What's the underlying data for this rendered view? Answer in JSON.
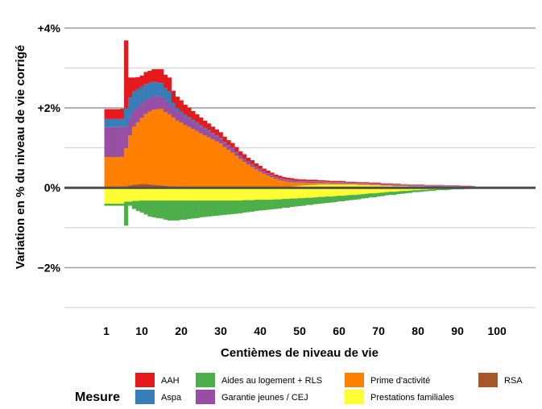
{
  "chart_data": {
    "type": "bar",
    "stacked": true,
    "xlabel": "Centièmes de niveau de vie",
    "ylabel": "Variation en % du niveau de vie corrigé",
    "ylim": [
      -3.0,
      4.5
    ],
    "y_ticks": [
      {
        "value": -2,
        "label": "−2%"
      },
      {
        "value": 0,
        "label": "0%"
      },
      {
        "value": 2,
        "label": "+2%"
      },
      {
        "value": 4,
        "label": "+4%"
      }
    ],
    "x_ticks": [
      {
        "value": 1,
        "label": "1"
      },
      {
        "value": 10,
        "label": "10"
      },
      {
        "value": 20,
        "label": "20"
      },
      {
        "value": 30,
        "label": "30"
      },
      {
        "value": 40,
        "label": "40"
      },
      {
        "value": 50,
        "label": "50"
      },
      {
        "value": 60,
        "label": "60"
      },
      {
        "value": 70,
        "label": "70"
      },
      {
        "value": 80,
        "label": "80"
      },
      {
        "value": 90,
        "label": "90"
      },
      {
        "value": 100,
        "label": "100"
      }
    ],
    "grid": true,
    "legend": {
      "title": "Mesure",
      "position": "bottom",
      "entries": [
        {
          "name": "AAH",
          "color": "#e41a1c"
        },
        {
          "name": "Aspa",
          "color": "#377eb8"
        },
        {
          "name": "Aides au logement + RLS",
          "color": "#4daf4a"
        },
        {
          "name": "Garantie jeunes / CEJ",
          "color": "#984ea3"
        },
        {
          "name": "Prime d'activité",
          "color": "#ff7f00"
        },
        {
          "name": "Prestations familiales",
          "color": "#ffff33"
        },
        {
          "name": "RSA",
          "color": "#a65628"
        }
      ]
    },
    "x": [
      1,
      2,
      3,
      4,
      5,
      6,
      7,
      8,
      9,
      10,
      11,
      12,
      13,
      14,
      15,
      16,
      17,
      18,
      19,
      20,
      21,
      22,
      23,
      24,
      25,
      26,
      27,
      28,
      29,
      30,
      31,
      32,
      33,
      34,
      35,
      36,
      37,
      38,
      39,
      40,
      41,
      42,
      43,
      44,
      45,
      46,
      47,
      48,
      49,
      50,
      51,
      52,
      53,
      54,
      55,
      56,
      57,
      58,
      59,
      60,
      61,
      62,
      63,
      64,
      65,
      66,
      67,
      68,
      69,
      70,
      71,
      72,
      73,
      74,
      75,
      76,
      77,
      78,
      79,
      80,
      81,
      82,
      83,
      84,
      85,
      86,
      87,
      88,
      89,
      90,
      91,
      92,
      93,
      94,
      95,
      96,
      97,
      98,
      99,
      100
    ],
    "positive_series": [
      {
        "name": "RSA",
        "color": "#a65628",
        "values": [
          0.02,
          0.02,
          0.02,
          0.02,
          0.03,
          0.04,
          0.06,
          0.08,
          0.09,
          0.1,
          0.1,
          0.09,
          0.08,
          0.07,
          0.06,
          0.05,
          0.04,
          0.04,
          0.03,
          0.03,
          0.02,
          0.02,
          0.02,
          0.02,
          0.01,
          0.01,
          0.01,
          0.01,
          0.01,
          0.01,
          0,
          0,
          0,
          0,
          0,
          0,
          0,
          0,
          0,
          0,
          0,
          0,
          0,
          0,
          0,
          0,
          0,
          0,
          0,
          0,
          0,
          0,
          0,
          0,
          0,
          0,
          0,
          0,
          0,
          0,
          0,
          0,
          0,
          0,
          0,
          0,
          0,
          0,
          0,
          0,
          0,
          0,
          0,
          0,
          0,
          0,
          0,
          0,
          0,
          0,
          0,
          0,
          0,
          0,
          0,
          0,
          0,
          0,
          0,
          0,
          0,
          0,
          0,
          0,
          0,
          0,
          0,
          0,
          0,
          0
        ]
      },
      {
        "name": "Prestations familiales",
        "color": "#ffff33",
        "values": [
          0,
          0,
          0,
          0,
          0,
          0,
          0,
          0,
          0,
          0,
          0,
          0,
          0,
          0,
          0,
          0,
          0,
          0,
          0,
          0,
          0,
          0,
          0,
          0,
          0,
          0,
          0,
          0,
          0,
          0,
          0,
          0,
          0,
          0,
          0,
          0,
          0,
          0,
          0,
          0,
          0,
          0,
          0,
          0,
          0,
          0.01,
          0.02,
          0.03,
          0.04,
          0.05,
          0.06,
          0.06,
          0.07,
          0.07,
          0.08,
          0.08,
          0.08,
          0.08,
          0.08,
          0.08,
          0.08,
          0.08,
          0.08,
          0.08,
          0.07,
          0.07,
          0.07,
          0.06,
          0.06,
          0.06,
          0.05,
          0.05,
          0.05,
          0.04,
          0.04,
          0.04,
          0.04,
          0.03,
          0.03,
          0.03,
          0.03,
          0.02,
          0.02,
          0.02,
          0.02,
          0.02,
          0.01,
          0.01,
          0.01,
          0.01,
          0.01,
          0.01,
          0.01,
          0.01,
          0.01,
          0.01,
          0,
          0,
          0,
          0
        ]
      },
      {
        "name": "Prime d'activité",
        "color": "#ff7f00",
        "values": [
          0.75,
          0.75,
          0.75,
          0.75,
          0.75,
          0.95,
          1.25,
          1.45,
          1.55,
          1.65,
          1.75,
          1.82,
          1.88,
          1.9,
          1.92,
          1.85,
          1.8,
          1.72,
          1.65,
          1.6,
          1.55,
          1.5,
          1.45,
          1.4,
          1.35,
          1.3,
          1.25,
          1.2,
          1.15,
          1.1,
          1.02,
          0.95,
          0.88,
          0.8,
          0.72,
          0.65,
          0.58,
          0.52,
          0.46,
          0.4,
          0.35,
          0.3,
          0.26,
          0.22,
          0.19,
          0.16,
          0.13,
          0.11,
          0.09,
          0.08,
          0.07,
          0.06,
          0.05,
          0.05,
          0.04,
          0.04,
          0.04,
          0.03,
          0.03,
          0.03,
          0.03,
          0.02,
          0.02,
          0.02,
          0.02,
          0.02,
          0.02,
          0.02,
          0.02,
          0.02,
          0.01,
          0.01,
          0.01,
          0.01,
          0.01,
          0.01,
          0.01,
          0.01,
          0.01,
          0.01,
          0.01,
          0.01,
          0.01,
          0.01,
          0.01,
          0.01,
          0.01,
          0.01,
          0.01,
          0.01,
          0.01,
          0.01,
          0.01,
          0,
          0,
          0,
          0,
          0,
          0,
          0
        ]
      },
      {
        "name": "Garantie jeunes / CEJ",
        "color": "#984ea3",
        "values": [
          0.75,
          0.75,
          0.75,
          0.75,
          0.75,
          0.55,
          0.45,
          0.4,
          0.38,
          0.36,
          0.35,
          0.34,
          0.33,
          0.32,
          0.3,
          0.28,
          0.27,
          0.25,
          0.24,
          0.22,
          0.21,
          0.2,
          0.19,
          0.18,
          0.17,
          0.16,
          0.15,
          0.14,
          0.13,
          0.12,
          0.11,
          0.1,
          0.1,
          0.09,
          0.08,
          0.08,
          0.07,
          0.07,
          0.06,
          0.06,
          0.05,
          0.05,
          0.05,
          0.04,
          0.04,
          0.04,
          0.04,
          0.04,
          0.03,
          0.03,
          0.03,
          0.03,
          0.03,
          0.03,
          0.03,
          0.03,
          0.02,
          0.02,
          0.02,
          0.02,
          0.02,
          0.02,
          0.02,
          0.02,
          0.02,
          0.02,
          0.02,
          0.02,
          0.02,
          0.02,
          0.02,
          0.02,
          0.02,
          0.02,
          0.02,
          0.02,
          0.02,
          0.02,
          0.02,
          0.02,
          0.02,
          0.02,
          0.02,
          0.02,
          0.02,
          0.02,
          0.02,
          0.02,
          0.02,
          0.02,
          0.02,
          0.02,
          0.02,
          0.02,
          0.01,
          0.01,
          0.01,
          0.01,
          0.01,
          0.01
        ]
      },
      {
        "name": "Aspa",
        "color": "#377eb8",
        "values": [
          0.2,
          0.2,
          0.2,
          0.2,
          0.2,
          0.45,
          0.5,
          0.48,
          0.45,
          0.42,
          0.4,
          0.38,
          0.36,
          0.35,
          0.34,
          0.32,
          0.3,
          0.12,
          0.08,
          0.06,
          0.05,
          0.05,
          0.04,
          0.04,
          0.03,
          0.03,
          0.03,
          0.02,
          0.02,
          0.02,
          0.02,
          0.02,
          0.02,
          0.02,
          0.01,
          0.01,
          0.01,
          0.01,
          0.01,
          0.01,
          0.01,
          0.01,
          0.01,
          0.01,
          0.01,
          0.01,
          0.01,
          0.01,
          0.01,
          0.01,
          0.01,
          0.01,
          0.01,
          0.01,
          0.01,
          0.01,
          0.01,
          0.01,
          0.01,
          0.01,
          0.01,
          0.01,
          0.01,
          0.01,
          0.01,
          0.01,
          0.01,
          0.01,
          0.01,
          0.01,
          0.01,
          0.01,
          0.01,
          0.01,
          0.01,
          0.01,
          0.01,
          0.01,
          0.01,
          0.01,
          0.01,
          0.01,
          0.01,
          0.01,
          0.01,
          0.01,
          0.01,
          0.01,
          0.01,
          0.01,
          0,
          0,
          0,
          0,
          0,
          0,
          0,
          0,
          0,
          0
        ]
      },
      {
        "name": "AAH",
        "color": "#e41a1c",
        "values": [
          0.25,
          0.25,
          0.25,
          0.25,
          0.25,
          1.7,
          0.5,
          0.35,
          0.3,
          0.28,
          0.3,
          0.3,
          0.32,
          0.33,
          0.35,
          0.33,
          0.35,
          0.3,
          0.28,
          0.28,
          0.25,
          0.24,
          0.22,
          0.2,
          0.2,
          0.18,
          0.17,
          0.16,
          0.15,
          0.14,
          0.13,
          0.12,
          0.12,
          0.11,
          0.1,
          0.1,
          0.09,
          0.09,
          0.08,
          0.08,
          0.07,
          0.07,
          0.06,
          0.06,
          0.06,
          0.05,
          0.05,
          0.05,
          0.05,
          0.04,
          0.04,
          0.04,
          0.04,
          0.04,
          0.03,
          0.03,
          0.03,
          0.03,
          0.03,
          0.03,
          0.03,
          0.02,
          0.02,
          0.02,
          0.02,
          0.02,
          0.02,
          0.02,
          0.02,
          0.02,
          0.02,
          0.02,
          0.02,
          0.02,
          0.02,
          0.01,
          0.01,
          0.01,
          0.01,
          0.01,
          0.01,
          0.01,
          0.01,
          0.01,
          0.01,
          0.01,
          0.01,
          0.01,
          0.01,
          0.01,
          0.01,
          0.01,
          0.01,
          0.01,
          0,
          0,
          0,
          0,
          0,
          0
        ]
      }
    ],
    "negative_series": [
      {
        "name": "Prestations familiales",
        "color": "#ffff33",
        "values": [
          -0.4,
          -0.4,
          -0.4,
          -0.4,
          -0.4,
          -0.35,
          -0.35,
          -0.33,
          -0.33,
          -0.32,
          -0.32,
          -0.32,
          -0.32,
          -0.32,
          -0.32,
          -0.32,
          -0.32,
          -0.32,
          -0.32,
          -0.32,
          -0.32,
          -0.32,
          -0.32,
          -0.32,
          -0.32,
          -0.32,
          -0.32,
          -0.32,
          -0.32,
          -0.32,
          -0.32,
          -0.32,
          -0.32,
          -0.32,
          -0.32,
          -0.31,
          -0.31,
          -0.31,
          -0.3,
          -0.3,
          -0.3,
          -0.3,
          -0.3,
          -0.29,
          -0.29,
          -0.28,
          -0.28,
          -0.27,
          -0.27,
          -0.26,
          -0.26,
          -0.25,
          -0.25,
          -0.24,
          -0.23,
          -0.23,
          -0.22,
          -0.22,
          -0.21,
          -0.2,
          -0.2,
          -0.19,
          -0.18,
          -0.18,
          -0.17,
          -0.16,
          -0.15,
          -0.14,
          -0.14,
          -0.13,
          -0.12,
          -0.11,
          -0.1,
          -0.1,
          -0.09,
          -0.08,
          -0.08,
          -0.07,
          -0.06,
          -0.06,
          -0.05,
          -0.05,
          -0.04,
          -0.04,
          -0.03,
          -0.03,
          -0.03,
          -0.02,
          -0.02,
          -0.02,
          -0.02,
          -0.01,
          -0.01,
          -0.01,
          -0.01,
          -0.01,
          -0.01,
          -0.01,
          0,
          0
        ]
      },
      {
        "name": "Aides au logement + RLS",
        "color": "#4daf4a",
        "values": [
          -0.05,
          -0.05,
          -0.05,
          -0.05,
          -0.05,
          -0.6,
          -0.1,
          -0.2,
          -0.25,
          -0.3,
          -0.35,
          -0.4,
          -0.42,
          -0.44,
          -0.45,
          -0.48,
          -0.5,
          -0.5,
          -0.5,
          -0.48,
          -0.48,
          -0.46,
          -0.45,
          -0.44,
          -0.42,
          -0.41,
          -0.4,
          -0.39,
          -0.38,
          -0.37,
          -0.36,
          -0.35,
          -0.34,
          -0.33,
          -0.32,
          -0.31,
          -0.3,
          -0.29,
          -0.28,
          -0.27,
          -0.26,
          -0.25,
          -0.24,
          -0.24,
          -0.23,
          -0.22,
          -0.22,
          -0.21,
          -0.2,
          -0.2,
          -0.19,
          -0.18,
          -0.18,
          -0.17,
          -0.17,
          -0.16,
          -0.16,
          -0.15,
          -0.15,
          -0.14,
          -0.14,
          -0.13,
          -0.13,
          -0.12,
          -0.12,
          -0.11,
          -0.11,
          -0.1,
          -0.1,
          -0.09,
          -0.09,
          -0.08,
          -0.08,
          -0.08,
          -0.07,
          -0.07,
          -0.06,
          -0.06,
          -0.05,
          -0.05,
          -0.05,
          -0.04,
          -0.04,
          -0.04,
          -0.03,
          -0.03,
          -0.03,
          -0.03,
          -0.02,
          -0.02,
          -0.02,
          -0.02,
          -0.01,
          -0.01,
          -0.01,
          -0.01,
          -0.01,
          0,
          0,
          0
        ]
      }
    ]
  }
}
